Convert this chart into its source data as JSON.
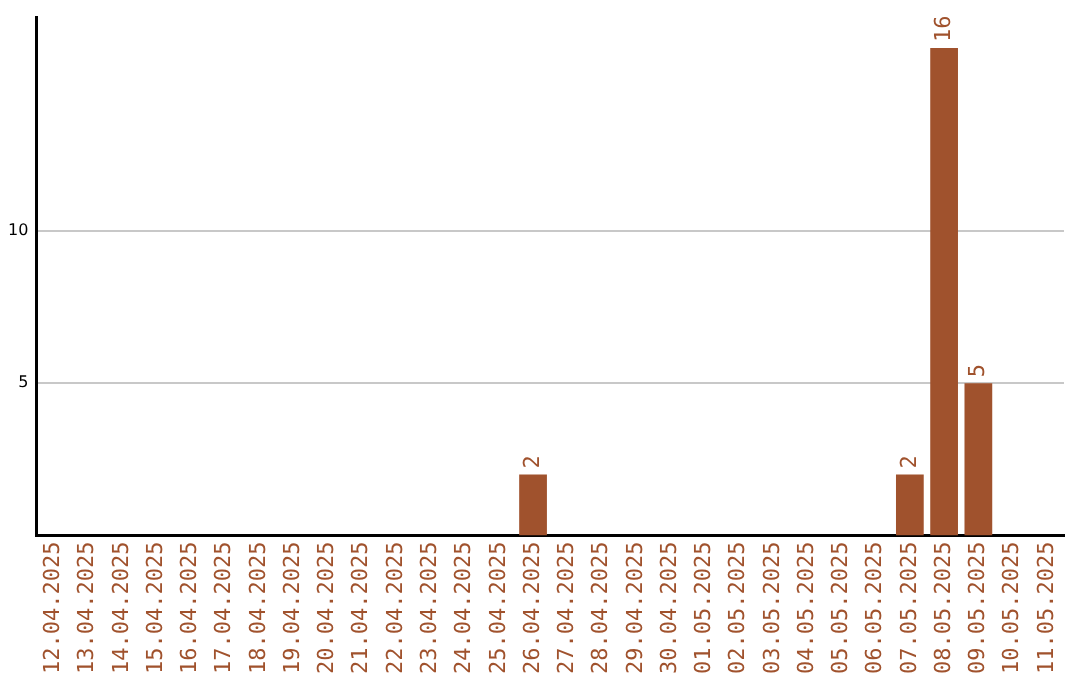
{
  "chart_data": {
    "type": "bar",
    "categories": [
      "12.04.2025",
      "13.04.2025",
      "14.04.2025",
      "15.04.2025",
      "16.04.2025",
      "17.04.2025",
      "18.04.2025",
      "19.04.2025",
      "20.04.2025",
      "21.04.2025",
      "22.04.2025",
      "23.04.2025",
      "24.04.2025",
      "25.04.2025",
      "26.04.2025",
      "27.04.2025",
      "28.04.2025",
      "29.04.2025",
      "30.04.2025",
      "01.05.2025",
      "02.05.2025",
      "03.05.2025",
      "04.05.2025",
      "05.05.2025",
      "06.05.2025",
      "07.05.2025",
      "08.05.2025",
      "09.05.2025",
      "10.05.2025",
      "11.05.2025"
    ],
    "values": [
      0,
      0,
      0,
      0,
      0,
      0,
      0,
      0,
      0,
      0,
      0,
      0,
      0,
      0,
      2,
      0,
      0,
      0,
      0,
      0,
      0,
      0,
      0,
      0,
      0,
      2,
      16,
      5,
      0,
      0
    ],
    "value_labels": [
      null,
      null,
      null,
      null,
      null,
      null,
      null,
      null,
      null,
      null,
      null,
      null,
      null,
      null,
      "2",
      null,
      null,
      null,
      null,
      null,
      null,
      null,
      null,
      null,
      null,
      "2",
      "16",
      "5",
      null,
      null
    ],
    "color": "#a0522d",
    "ylim": [
      0,
      17
    ],
    "yticks": [
      5,
      10
    ],
    "grid": "y",
    "legend": false
  }
}
